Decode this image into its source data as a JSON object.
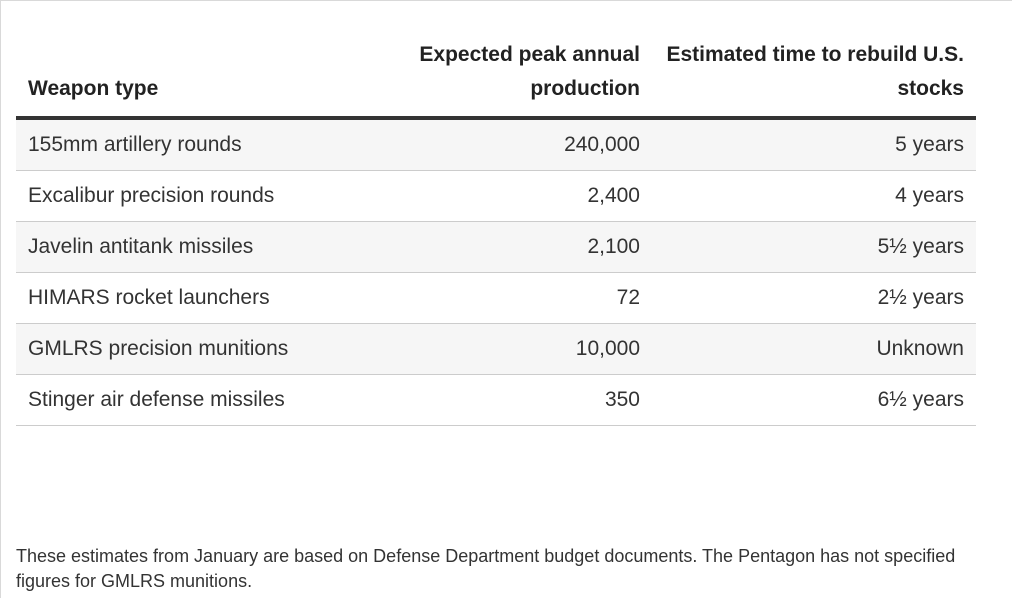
{
  "chart_data": {
    "type": "table",
    "columns": [
      "Weapon type",
      "Expected peak annual production",
      "Estimated time to rebuild U.S. stocks"
    ],
    "rows": [
      {
        "weapon": "155mm artillery rounds",
        "production": "240,000",
        "rebuild": "5 years"
      },
      {
        "weapon": "Excalibur precision rounds",
        "production": "2,400",
        "rebuild": "4 years"
      },
      {
        "weapon": "Javelin antitank missiles",
        "production": "2,100",
        "rebuild": "5½ years"
      },
      {
        "weapon": "HIMARS rocket launchers",
        "production": "72",
        "rebuild": "2½ years"
      },
      {
        "weapon": "GMLRS precision munitions",
        "production": "10,000",
        "rebuild": "Unknown"
      },
      {
        "weapon": "Stinger air defense missiles",
        "production": "350",
        "rebuild": "6½ years"
      }
    ],
    "footnote": "These estimates from January are based on Defense Department budget documents. The Pentagon has not specified figures for GMLRS munitions."
  },
  "colors": {
    "header_rule": "#333333",
    "row_divider": "#cccccc",
    "row_shade": "#f6f6f6",
    "text": "#222222"
  }
}
